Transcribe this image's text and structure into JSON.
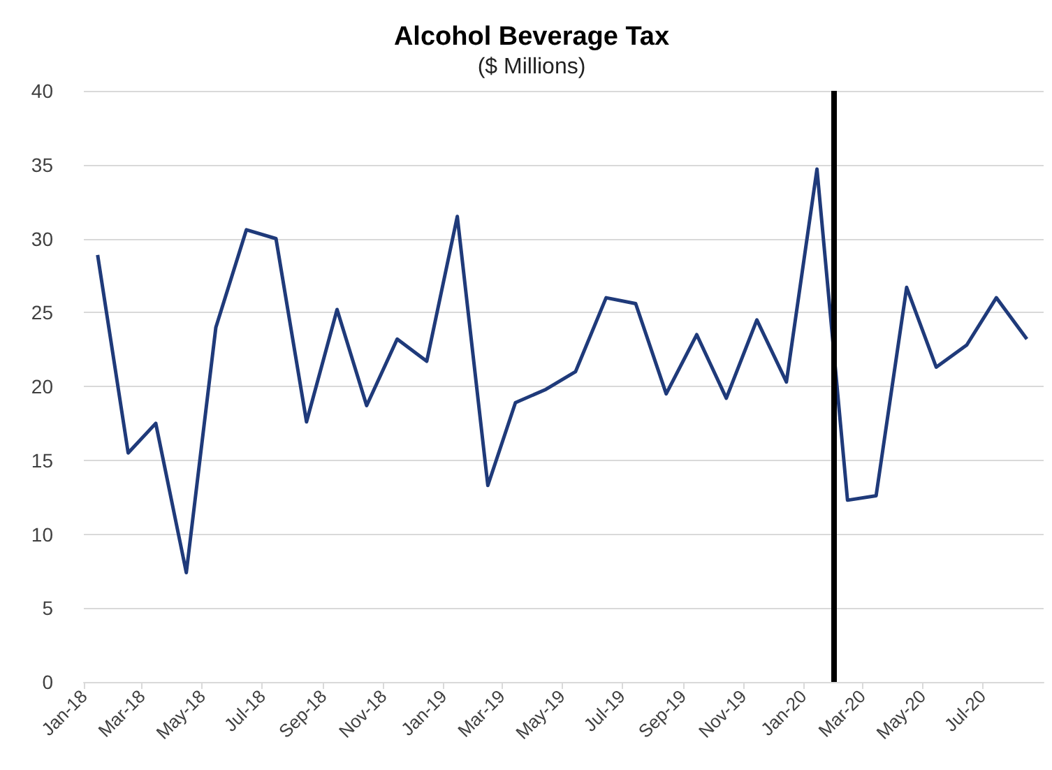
{
  "chart_data": {
    "type": "line",
    "title": "Alcohol Beverage Tax",
    "subtitle": "($ Millions)",
    "x": [
      "2018-01-15",
      "2018-02-15",
      "2018-03-15",
      "2018-04-15",
      "2018-05-15",
      "2018-06-15",
      "2018-07-15",
      "2018-08-15",
      "2018-09-15",
      "2018-10-15",
      "2018-11-15",
      "2018-12-15",
      "2019-01-15",
      "2019-02-15",
      "2019-03-15",
      "2019-04-15",
      "2019-05-15",
      "2019-06-15",
      "2019-07-15",
      "2019-08-15",
      "2019-09-15",
      "2019-10-15",
      "2019-11-15",
      "2019-12-15",
      "2020-01-15",
      "2020-02-15",
      "2020-03-15",
      "2020-04-15",
      "2020-05-15",
      "2020-06-15",
      "2020-07-15",
      "2020-08-15"
    ],
    "series": [
      {
        "color": "#1f3a7a",
        "values": [
          28.9,
          15.5,
          17.5,
          7.4,
          24.0,
          30.6,
          30.0,
          17.6,
          25.2,
          18.7,
          23.2,
          21.7,
          31.5,
          13.3,
          18.9,
          19.8,
          21.0,
          26.0,
          25.6,
          19.5,
          23.5,
          19.2,
          24.5,
          20.3,
          34.7,
          12.3,
          12.6,
          26.7,
          21.3,
          22.8,
          26.0,
          23.2
        ]
      }
    ],
    "xlim": [
      "2018-01-01",
      "2020-09-01"
    ],
    "xticks": [
      {
        "value": "2018-01-01",
        "label": "Jan-18"
      },
      {
        "value": "2018-03-01",
        "label": "Mar-18"
      },
      {
        "value": "2018-05-01",
        "label": "May-18"
      },
      {
        "value": "2018-07-01",
        "label": "Jul-18"
      },
      {
        "value": "2018-09-01",
        "label": "Sep-18"
      },
      {
        "value": "2018-11-01",
        "label": "Nov-18"
      },
      {
        "value": "2019-01-01",
        "label": "Jan-19"
      },
      {
        "value": "2019-03-01",
        "label": "Mar-19"
      },
      {
        "value": "2019-05-01",
        "label": "May-19"
      },
      {
        "value": "2019-07-01",
        "label": "Jul-19"
      },
      {
        "value": "2019-09-01",
        "label": "Sep-19"
      },
      {
        "value": "2019-11-01",
        "label": "Nov-19"
      },
      {
        "value": "2020-01-01",
        "label": "Jan-20"
      },
      {
        "value": "2020-03-01",
        "label": "Mar-20"
      },
      {
        "value": "2020-05-01",
        "label": "May-20"
      },
      {
        "value": "2020-07-01",
        "label": "Jul-20"
      }
    ],
    "ylim": [
      0,
      40
    ],
    "yticks": [
      0,
      5,
      10,
      15,
      20,
      25,
      30,
      35,
      40
    ],
    "grid": "y",
    "marker": "none",
    "line_style": "solid",
    "ref_lines": [
      {
        "axis": "x",
        "value": "2020-02-01",
        "color": "#000000"
      }
    ]
  }
}
